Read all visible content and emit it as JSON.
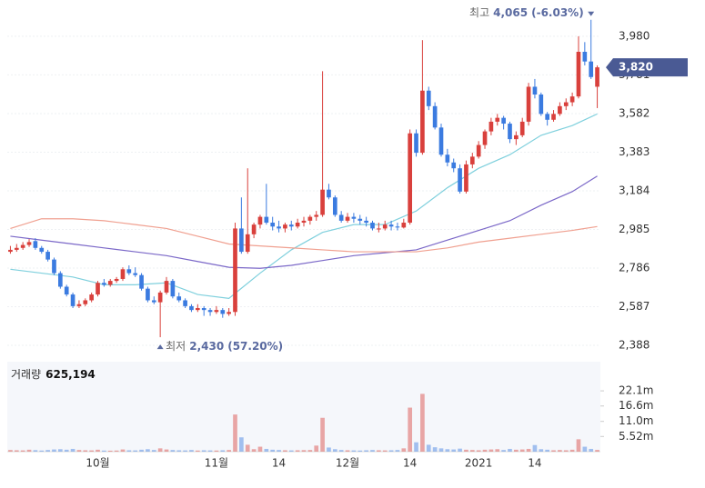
{
  "chart_data": {
    "type": "candlestick",
    "categories": [
      null,
      null,
      null,
      null,
      null,
      null,
      null,
      null,
      null,
      null,
      null,
      null,
      null,
      null,
      "10월",
      null,
      null,
      null,
      null,
      null,
      null,
      null,
      null,
      null,
      null,
      null,
      null,
      null,
      null,
      null,
      null,
      null,
      null,
      "11월",
      null,
      null,
      null,
      null,
      null,
      null,
      null,
      null,
      null,
      "14",
      null,
      null,
      null,
      null,
      null,
      null,
      null,
      null,
      null,
      null,
      "12월",
      null,
      null,
      null,
      null,
      null,
      null,
      null,
      null,
      null,
      "14",
      null,
      null,
      null,
      null,
      null,
      null,
      null,
      null,
      null,
      null,
      "2021",
      null,
      null,
      null,
      null,
      null,
      null,
      null,
      null,
      "14",
      null,
      null,
      null,
      null,
      null,
      null,
      null,
      null,
      null,
      null
    ],
    "ohlc": [
      [
        2870,
        2900,
        2860,
        2880
      ],
      [
        2880,
        2910,
        2870,
        2890
      ],
      [
        2890,
        2920,
        2880,
        2905
      ],
      [
        2905,
        2935,
        2895,
        2920
      ],
      [
        2925,
        2940,
        2880,
        2890
      ],
      [
        2890,
        2900,
        2860,
        2870
      ],
      [
        2870,
        2880,
        2820,
        2830
      ],
      [
        2830,
        2840,
        2750,
        2760
      ],
      [
        2760,
        2770,
        2680,
        2690
      ],
      [
        2690,
        2700,
        2640,
        2650
      ],
      [
        2650,
        2660,
        2580,
        2590
      ],
      [
        2590,
        2620,
        2580,
        2600
      ],
      [
        2600,
        2630,
        2590,
        2620
      ],
      [
        2620,
        2660,
        2610,
        2650
      ],
      [
        2650,
        2720,
        2640,
        2710
      ],
      [
        2710,
        2730,
        2690,
        2700
      ],
      [
        2700,
        2730,
        2690,
        2720
      ],
      [
        2720,
        2740,
        2710,
        2730
      ],
      [
        2730,
        2790,
        2720,
        2780
      ],
      [
        2780,
        2800,
        2750,
        2760
      ],
      [
        2760,
        2790,
        2740,
        2750
      ],
      [
        2750,
        2760,
        2670,
        2680
      ],
      [
        2680,
        2690,
        2610,
        2620
      ],
      [
        2620,
        2640,
        2600,
        2610
      ],
      [
        2610,
        2670,
        2430,
        2660
      ],
      [
        2660,
        2740,
        2650,
        2720
      ],
      [
        2720,
        2730,
        2630,
        2640
      ],
      [
        2640,
        2660,
        2610,
        2620
      ],
      [
        2620,
        2630,
        2580,
        2590
      ],
      [
        2590,
        2600,
        2560,
        2570
      ],
      [
        2570,
        2600,
        2560,
        2580
      ],
      [
        2580,
        2590,
        2540,
        2570
      ],
      [
        2570,
        2580,
        2540,
        2560
      ],
      [
        2560,
        2590,
        2550,
        2570
      ],
      [
        2570,
        2580,
        2530,
        2550
      ],
      [
        2550,
        2580,
        2540,
        2560
      ],
      [
        2560,
        3020,
        2540,
        2990
      ],
      [
        2990,
        3150,
        2860,
        2870
      ],
      [
        2870,
        3300,
        2860,
        2960
      ],
      [
        2960,
        3020,
        2940,
        3010
      ],
      [
        3010,
        3060,
        2990,
        3050
      ],
      [
        3050,
        3220,
        3010,
        3020
      ],
      [
        3020,
        3050,
        2980,
        3000
      ],
      [
        3000,
        3030,
        2970,
        2990
      ],
      [
        2990,
        3020,
        2970,
        3010
      ],
      [
        3010,
        3030,
        2980,
        3000
      ],
      [
        3000,
        3040,
        2990,
        3020
      ],
      [
        3020,
        3050,
        3000,
        3030
      ],
      [
        3030,
        3060,
        3010,
        3050
      ],
      [
        3050,
        3080,
        3030,
        3060
      ],
      [
        3060,
        3800,
        3050,
        3190
      ],
      [
        3190,
        3220,
        3140,
        3150
      ],
      [
        3150,
        3160,
        3050,
        3060
      ],
      [
        3060,
        3080,
        3020,
        3030
      ],
      [
        3030,
        3070,
        3020,
        3050
      ],
      [
        3050,
        3070,
        3020,
        3040
      ],
      [
        3040,
        3060,
        3010,
        3030
      ],
      [
        3030,
        3050,
        3000,
        3020
      ],
      [
        3020,
        3030,
        2980,
        2990
      ],
      [
        2985,
        3020,
        2970,
        2990
      ],
      [
        2990,
        3030,
        2980,
        3010
      ],
      [
        3010,
        3030,
        2980,
        3000
      ],
      [
        3000,
        3020,
        2980,
        2995
      ],
      [
        2995,
        3040,
        2990,
        3020
      ],
      [
        3020,
        3500,
        3010,
        3480
      ],
      [
        3480,
        3500,
        3360,
        3380
      ],
      [
        3380,
        3960,
        3370,
        3700
      ],
      [
        3700,
        3720,
        3600,
        3620
      ],
      [
        3620,
        3640,
        3500,
        3510
      ],
      [
        3510,
        3530,
        3360,
        3370
      ],
      [
        3370,
        3400,
        3310,
        3330
      ],
      [
        3330,
        3350,
        3280,
        3300
      ],
      [
        3300,
        3320,
        3170,
        3180
      ],
      [
        3180,
        3340,
        3170,
        3320
      ],
      [
        3320,
        3380,
        3300,
        3360
      ],
      [
        3360,
        3440,
        3350,
        3420
      ],
      [
        3420,
        3500,
        3400,
        3490
      ],
      [
        3490,
        3560,
        3470,
        3540
      ],
      [
        3540,
        3580,
        3520,
        3560
      ],
      [
        3560,
        3570,
        3500,
        3530
      ],
      [
        3530,
        3540,
        3430,
        3450
      ],
      [
        3450,
        3490,
        3420,
        3470
      ],
      [
        3470,
        3560,
        3460,
        3540
      ],
      [
        3540,
        3740,
        3520,
        3720
      ],
      [
        3720,
        3760,
        3660,
        3680
      ],
      [
        3680,
        3690,
        3570,
        3580
      ],
      [
        3580,
        3590,
        3520,
        3550
      ],
      [
        3550,
        3600,
        3540,
        3580
      ],
      [
        3580,
        3640,
        3570,
        3620
      ],
      [
        3620,
        3660,
        3600,
        3640
      ],
      [
        3640,
        3690,
        3620,
        3670
      ],
      [
        3670,
        3980,
        3660,
        3900
      ],
      [
        3900,
        3950,
        3830,
        3850
      ],
      [
        3850,
        4065,
        3760,
        3770
      ],
      [
        3720,
        3830,
        3610,
        3820
      ]
    ],
    "up_color": "#d9403c",
    "down_color": "#3b7be0",
    "ylim": [
      2332,
      4120
    ],
    "yticks": [
      {
        "value": 2388,
        "label": "2,388"
      },
      {
        "value": 2587,
        "label": "2,587"
      },
      {
        "value": 2786,
        "label": "2,786"
      },
      {
        "value": 2985,
        "label": "2,985"
      },
      {
        "value": 3184,
        "label": "3,184"
      },
      {
        "value": 3383,
        "label": "3,383"
      },
      {
        "value": 3582,
        "label": "3,582"
      },
      {
        "value": 3781,
        "label": "3,781"
      },
      {
        "value": 3980,
        "label": "3,980"
      }
    ],
    "grid": true,
    "moving_averages": [
      {
        "color": "#7fd0dd",
        "x": [
          0,
          5,
          10,
          15,
          20,
          25,
          30,
          35,
          40,
          45,
          50,
          55,
          60,
          65,
          70,
          75,
          80,
          85,
          90,
          94
        ],
        "values": [
          2780,
          2760,
          2740,
          2700,
          2700,
          2710,
          2650,
          2630,
          2760,
          2880,
          2970,
          3010,
          3010,
          3080,
          3200,
          3300,
          3370,
          3470,
          3520,
          3580
        ]
      },
      {
        "color": "#7b68c8",
        "x": [
          0,
          5,
          10,
          15,
          20,
          25,
          30,
          35,
          40,
          45,
          50,
          55,
          60,
          65,
          70,
          75,
          80,
          85,
          90,
          94
        ],
        "values": [
          2950,
          2930,
          2910,
          2890,
          2870,
          2850,
          2820,
          2790,
          2785,
          2800,
          2825,
          2850,
          2865,
          2880,
          2930,
          2980,
          3030,
          3110,
          3180,
          3260
        ]
      },
      {
        "color": "#f0a090",
        "x": [
          0,
          5,
          10,
          15,
          20,
          25,
          30,
          35,
          40,
          45,
          50,
          55,
          60,
          65,
          70,
          75,
          80,
          85,
          90,
          94
        ],
        "values": [
          2990,
          3040,
          3040,
          3030,
          3010,
          2990,
          2950,
          2910,
          2900,
          2890,
          2880,
          2870,
          2870,
          2870,
          2890,
          2920,
          2940,
          2960,
          2980,
          3000
        ]
      }
    ],
    "last": {
      "value": 3820,
      "label": "3,820",
      "color": "#4a5a94"
    },
    "annotations": [
      {
        "label": "최고",
        "value": 4065,
        "value_label": "4,065",
        "change": -6.03,
        "change_label": "(-6.03%)"
      },
      {
        "label": "최저",
        "value": 2430,
        "value_label": "2,430",
        "change": 57.2,
        "change_label": "(57.20%)"
      }
    ],
    "volume": {
      "name": "거래량",
      "last_label": "625,194",
      "ylim": [
        0,
        32700000
      ],
      "yticks": [
        {
          "value": 5520000,
          "label": "5.52m"
        },
        {
          "value": 11000000,
          "label": "11.0m"
        },
        {
          "value": 16600000,
          "label": "16.6m"
        },
        {
          "value": 22100000,
          "label": "22.1m"
        }
      ],
      "values": [
        600000,
        500000,
        450000,
        700000,
        550000,
        400000,
        600000,
        800000,
        900000,
        700000,
        1000000,
        600000,
        500000,
        450000,
        700000,
        400000,
        350000,
        400000,
        800000,
        500000,
        450000,
        700000,
        900000,
        600000,
        1200000,
        800000,
        600000,
        500000,
        450000,
        600000,
        400000,
        500000,
        450000,
        400000,
        500000,
        600000,
        13500000,
        5200000,
        2500000,
        900000,
        1800000,
        1000000,
        700000,
        600000,
        500000,
        450000,
        500000,
        550000,
        600000,
        2200000,
        12300000,
        1500000,
        900000,
        600000,
        500000,
        450000,
        400000,
        500000,
        600000,
        500000,
        450000,
        500000,
        600000,
        1200000,
        16000000,
        3400000,
        21000000,
        2500000,
        1600000,
        1200000,
        900000,
        800000,
        1100000,
        700000,
        600000,
        500000,
        700000,
        800000,
        900000,
        600000,
        1000000,
        700000,
        800000,
        1000000,
        2400000,
        900000,
        700000,
        500000,
        600000,
        500000,
        700000,
        4500000,
        1800000,
        1000000,
        625194
      ]
    }
  }
}
